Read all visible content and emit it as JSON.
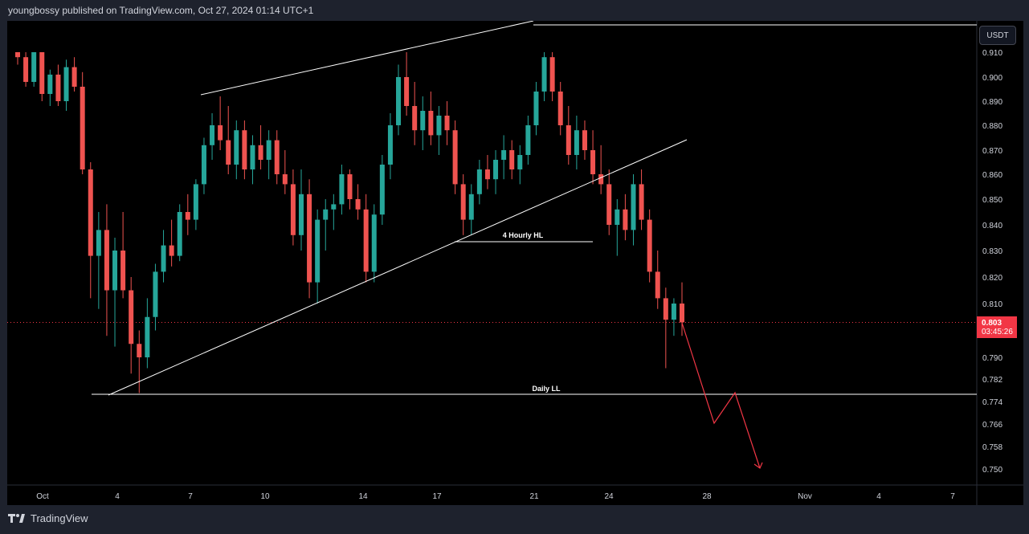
{
  "header": {
    "text": "youngbossy published on TradingView.com, Oct 27, 2024 01:14 UTC+1"
  },
  "footer": {
    "brand": "TradingView"
  },
  "price_scale": {
    "currency": "USDT"
  },
  "last_price": {
    "value": "0.803",
    "countdown": "03:45:26",
    "color": "#f23645"
  },
  "colors": {
    "up": "#26a69a",
    "down": "#ef5350",
    "line": "#ffffff",
    "projection": "#f23645"
  },
  "chart_data": {
    "type": "candlestick",
    "y_ticks": [
      "0.910",
      "0.900",
      "0.890",
      "0.880",
      "0.870",
      "0.860",
      "0.850",
      "0.840",
      "0.830",
      "0.820",
      "0.810",
      "0.790",
      "0.782",
      "0.774",
      "0.766",
      "0.758",
      "0.750"
    ],
    "x_ticks": [
      "Oct",
      "4",
      "7",
      "10",
      "14",
      "17",
      "21",
      "24",
      "28",
      "Nov",
      "4",
      "7"
    ],
    "annotations": [
      {
        "label": "4 Hourly HL",
        "price": 0.834
      },
      {
        "label": "Daily LL",
        "price": 0.776
      }
    ],
    "candles": [
      [
        0.918,
        0.92,
        0.905,
        0.908
      ],
      [
        0.908,
        0.912,
        0.896,
        0.898
      ],
      [
        0.898,
        0.914,
        0.896,
        0.912
      ],
      [
        0.912,
        0.914,
        0.89,
        0.893
      ],
      [
        0.893,
        0.903,
        0.888,
        0.901
      ],
      [
        0.901,
        0.905,
        0.888,
        0.89
      ],
      [
        0.89,
        0.907,
        0.886,
        0.904
      ],
      [
        0.904,
        0.908,
        0.894,
        0.896
      ],
      [
        0.896,
        0.902,
        0.86,
        0.862
      ],
      [
        0.862,
        0.865,
        0.812,
        0.828
      ],
      [
        0.828,
        0.845,
        0.808,
        0.838
      ],
      [
        0.838,
        0.848,
        0.798,
        0.815
      ],
      [
        0.815,
        0.835,
        0.794,
        0.83
      ],
      [
        0.83,
        0.845,
        0.812,
        0.815
      ],
      [
        0.815,
        0.82,
        0.784,
        0.795
      ],
      [
        0.795,
        0.8,
        0.777,
        0.79
      ],
      [
        0.79,
        0.812,
        0.786,
        0.805
      ],
      [
        0.805,
        0.825,
        0.8,
        0.822
      ],
      [
        0.822,
        0.838,
        0.818,
        0.832
      ],
      [
        0.832,
        0.842,
        0.824,
        0.828
      ],
      [
        0.828,
        0.848,
        0.826,
        0.845
      ],
      [
        0.845,
        0.852,
        0.836,
        0.842
      ],
      [
        0.842,
        0.858,
        0.838,
        0.856
      ],
      [
        0.856,
        0.875,
        0.852,
        0.872
      ],
      [
        0.872,
        0.885,
        0.866,
        0.88
      ],
      [
        0.88,
        0.892,
        0.87,
        0.874
      ],
      [
        0.874,
        0.888,
        0.86,
        0.864
      ],
      [
        0.864,
        0.882,
        0.858,
        0.878
      ],
      [
        0.878,
        0.882,
        0.858,
        0.862
      ],
      [
        0.862,
        0.876,
        0.856,
        0.872
      ],
      [
        0.872,
        0.88,
        0.862,
        0.866
      ],
      [
        0.866,
        0.878,
        0.858,
        0.874
      ],
      [
        0.874,
        0.878,
        0.856,
        0.86
      ],
      [
        0.86,
        0.87,
        0.852,
        0.856
      ],
      [
        0.856,
        0.862,
        0.832,
        0.836
      ],
      [
        0.836,
        0.862,
        0.83,
        0.852
      ],
      [
        0.852,
        0.858,
        0.812,
        0.818
      ],
      [
        0.818,
        0.846,
        0.81,
        0.842
      ],
      [
        0.842,
        0.85,
        0.83,
        0.846
      ],
      [
        0.846,
        0.852,
        0.838,
        0.848
      ],
      [
        0.848,
        0.864,
        0.844,
        0.86
      ],
      [
        0.86,
        0.862,
        0.846,
        0.85
      ],
      [
        0.85,
        0.856,
        0.842,
        0.846
      ],
      [
        0.846,
        0.852,
        0.818,
        0.822
      ],
      [
        0.822,
        0.848,
        0.818,
        0.844
      ],
      [
        0.844,
        0.868,
        0.84,
        0.864
      ],
      [
        0.864,
        0.885,
        0.858,
        0.88
      ],
      [
        0.88,
        0.905,
        0.876,
        0.9
      ],
      [
        0.9,
        0.912,
        0.884,
        0.888
      ],
      [
        0.888,
        0.898,
        0.872,
        0.878
      ],
      [
        0.878,
        0.892,
        0.87,
        0.886
      ],
      [
        0.886,
        0.894,
        0.872,
        0.876
      ],
      [
        0.876,
        0.888,
        0.868,
        0.884
      ],
      [
        0.884,
        0.89,
        0.872,
        0.878
      ],
      [
        0.878,
        0.882,
        0.852,
        0.856
      ],
      [
        0.856,
        0.86,
        0.836,
        0.842
      ],
      [
        0.842,
        0.856,
        0.836,
        0.852
      ],
      [
        0.852,
        0.866,
        0.848,
        0.862
      ],
      [
        0.862,
        0.868,
        0.854,
        0.858
      ],
      [
        0.858,
        0.87,
        0.852,
        0.866
      ],
      [
        0.866,
        0.876,
        0.858,
        0.87
      ],
      [
        0.87,
        0.874,
        0.858,
        0.862
      ],
      [
        0.862,
        0.872,
        0.856,
        0.868
      ],
      [
        0.868,
        0.884,
        0.864,
        0.88
      ],
      [
        0.88,
        0.898,
        0.876,
        0.894
      ],
      [
        0.894,
        0.916,
        0.89,
        0.908
      ],
      [
        0.908,
        0.912,
        0.89,
        0.894
      ],
      [
        0.894,
        0.898,
        0.876,
        0.88
      ],
      [
        0.88,
        0.888,
        0.864,
        0.868
      ],
      [
        0.868,
        0.884,
        0.862,
        0.878
      ],
      [
        0.878,
        0.882,
        0.866,
        0.87
      ],
      [
        0.87,
        0.878,
        0.856,
        0.86
      ],
      [
        0.86,
        0.872,
        0.852,
        0.856
      ],
      [
        0.856,
        0.862,
        0.836,
        0.84
      ],
      [
        0.84,
        0.85,
        0.828,
        0.846
      ],
      [
        0.846,
        0.852,
        0.834,
        0.838
      ],
      [
        0.838,
        0.86,
        0.832,
        0.856
      ],
      [
        0.856,
        0.862,
        0.838,
        0.842
      ],
      [
        0.842,
        0.846,
        0.818,
        0.822
      ],
      [
        0.822,
        0.83,
        0.808,
        0.812
      ],
      [
        0.812,
        0.816,
        0.786,
        0.804
      ],
      [
        0.804,
        0.812,
        0.798,
        0.81
      ],
      [
        0.81,
        0.818,
        0.798,
        0.803
      ]
    ]
  }
}
